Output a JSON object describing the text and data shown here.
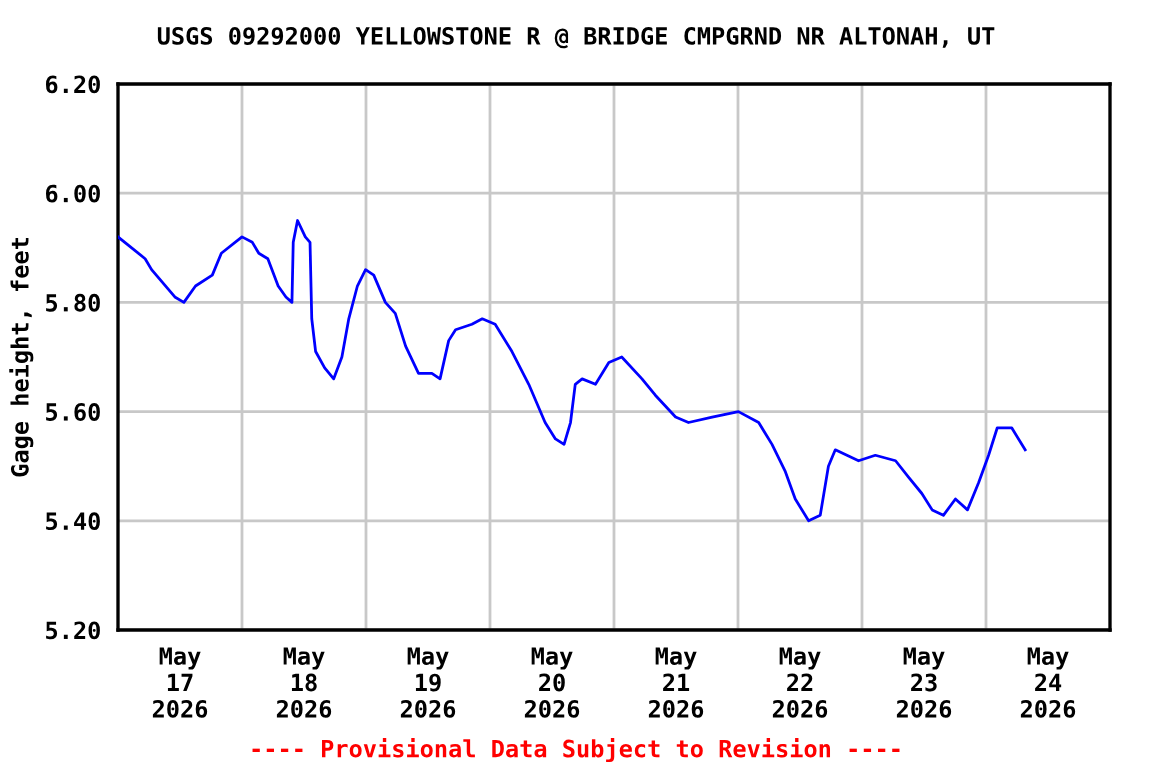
{
  "chart_data": {
    "type": "line",
    "title": "USGS 09292000 YELLOWSTONE R @ BRIDGE CMPGRND NR ALTONAH, UT",
    "ylabel": "Gage height, feet",
    "annotations": [
      "---- Provisional Data Subject to Revision ----"
    ],
    "series": [
      {
        "color": "#0000ff",
        "x": [
          "2026-05-17T00:00",
          "2026-05-17T05:15",
          "2026-05-17T06:30",
          "2026-05-17T11:00",
          "2026-05-17T12:45",
          "2026-05-17T15:00",
          "2026-05-17T18:15",
          "2026-05-17T20:00",
          "2026-05-18T00:00",
          "2026-05-18T02:00",
          "2026-05-18T03:15",
          "2026-05-18T05:00",
          "2026-05-18T07:00",
          "2026-05-18T08:30",
          "2026-05-18T09:40",
          "2026-05-18T09:55",
          "2026-05-18T10:45",
          "2026-05-18T12:15",
          "2026-05-18T13:10",
          "2026-05-18T13:30",
          "2026-05-18T14:15",
          "2026-05-18T16:00",
          "2026-05-18T17:45",
          "2026-05-18T19:20",
          "2026-05-18T20:40",
          "2026-05-18T22:20",
          "2026-05-18T23:55",
          "2026-05-19T01:30",
          "2026-05-19T03:45",
          "2026-05-19T05:40",
          "2026-05-19T07:40",
          "2026-05-19T10:10",
          "2026-05-19T12:45",
          "2026-05-19T14:20",
          "2026-05-19T16:00",
          "2026-05-19T17:20",
          "2026-05-19T20:30",
          "2026-05-19T22:30",
          "2026-05-20T01:00",
          "2026-05-20T04:15",
          "2026-05-20T07:30",
          "2026-05-20T10:40",
          "2026-05-20T12:40",
          "2026-05-20T14:20",
          "2026-05-20T15:35",
          "2026-05-20T16:30",
          "2026-05-20T17:50",
          "2026-05-20T20:25",
          "2026-05-20T23:00",
          "2026-05-21T01:30",
          "2026-05-21T05:25",
          "2026-05-21T08:00",
          "2026-05-21T11:55",
          "2026-05-21T14:25",
          "2026-05-21T19:00",
          "2026-05-22T00:05",
          "2026-05-22T04:00",
          "2026-05-22T06:35",
          "2026-05-22T09:10",
          "2026-05-22T11:05",
          "2026-05-22T13:40",
          "2026-05-22T15:55",
          "2026-05-22T17:30",
          "2026-05-22T18:50",
          "2026-05-22T23:20",
          "2026-05-23T02:35",
          "2026-05-23T06:30",
          "2026-05-23T09:00",
          "2026-05-23T11:35",
          "2026-05-23T13:35",
          "2026-05-23T15:45",
          "2026-05-23T18:05",
          "2026-05-23T20:25",
          "2026-05-23T22:35",
          "2026-05-24T00:30",
          "2026-05-24T02:10",
          "2026-05-24T05:00",
          "2026-05-24T07:35"
        ],
        "values": [
          5.92,
          5.88,
          5.86,
          5.81,
          5.8,
          5.83,
          5.85,
          5.89,
          5.92,
          5.91,
          5.89,
          5.88,
          5.83,
          5.81,
          5.8,
          5.91,
          5.95,
          5.92,
          5.91,
          5.77,
          5.71,
          5.68,
          5.66,
          5.7,
          5.77,
          5.83,
          5.86,
          5.85,
          5.8,
          5.78,
          5.72,
          5.67,
          5.67,
          5.66,
          5.73,
          5.75,
          5.76,
          5.77,
          5.76,
          5.71,
          5.65,
          5.58,
          5.55,
          5.54,
          5.58,
          5.65,
          5.66,
          5.65,
          5.69,
          5.7,
          5.66,
          5.63,
          5.59,
          5.58,
          5.59,
          5.6,
          5.58,
          5.54,
          5.49,
          5.44,
          5.4,
          5.41,
          5.5,
          5.53,
          5.51,
          5.52,
          5.51,
          5.48,
          5.45,
          5.42,
          5.41,
          5.44,
          5.42,
          5.47,
          5.52,
          5.57,
          5.57,
          5.53
        ]
      }
    ],
    "xlim": [
      "2026-05-17T00:00",
      "2026-05-25T00:00"
    ],
    "xticks": [
      {
        "value": "2026-05-17T12:00",
        "label": "May\n17\n2026"
      },
      {
        "value": "2026-05-18T12:00",
        "label": "May\n18\n2026"
      },
      {
        "value": "2026-05-19T12:00",
        "label": "May\n19\n2026"
      },
      {
        "value": "2026-05-20T12:00",
        "label": "May\n20\n2026"
      },
      {
        "value": "2026-05-21T12:00",
        "label": "May\n21\n2026"
      },
      {
        "value": "2026-05-22T12:00",
        "label": "May\n22\n2026"
      },
      {
        "value": "2026-05-23T12:00",
        "label": "May\n23\n2026"
      },
      {
        "value": "2026-05-24T12:00",
        "label": "May\n24\n2026"
      },
      {
        "value": "2026-05-18T00:00",
        "label": null
      },
      {
        "value": "2026-05-19T00:00",
        "label": null
      },
      {
        "value": "2026-05-20T00:00",
        "label": null
      },
      {
        "value": "2026-05-21T00:00",
        "label": null
      },
      {
        "value": "2026-05-22T00:00",
        "label": null
      },
      {
        "value": "2026-05-23T00:00",
        "label": null
      },
      {
        "value": "2026-05-24T00:00",
        "label": null
      }
    ],
    "ylim": [
      5.2,
      6.2
    ],
    "yticks": [
      {
        "value": 5.2,
        "label": "5.20"
      },
      {
        "value": 5.4,
        "label": "5.40"
      },
      {
        "value": 5.6,
        "label": "5.60"
      },
      {
        "value": 5.8,
        "label": "5.80"
      },
      {
        "value": 6.0,
        "label": "6.00"
      },
      {
        "value": 6.2,
        "label": "6.20"
      }
    ],
    "grid": true,
    "legend": false
  }
}
